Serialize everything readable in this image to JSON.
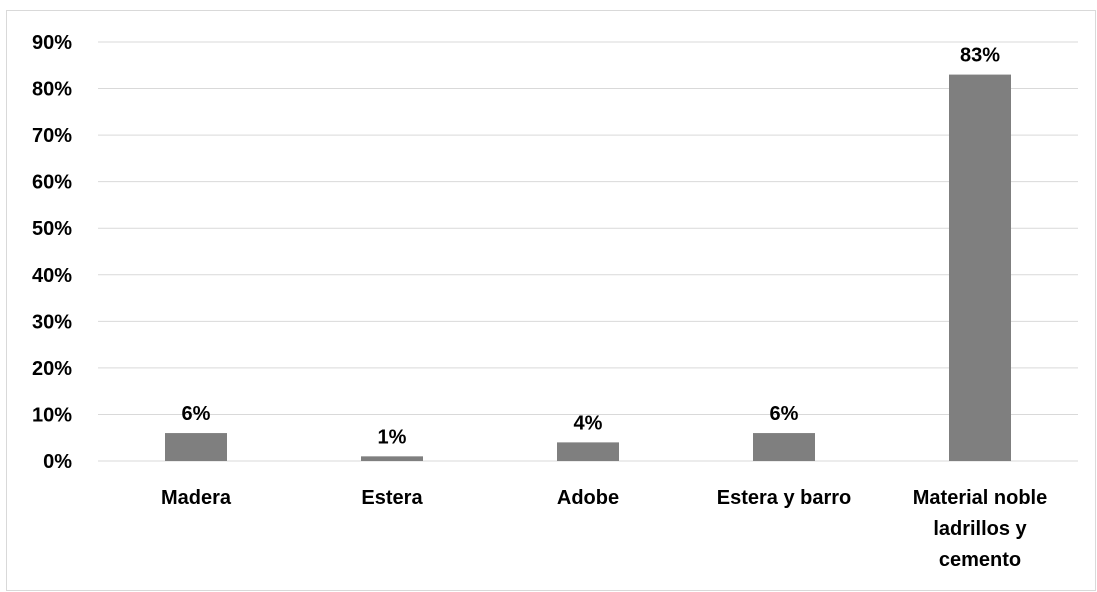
{
  "chart_data": {
    "type": "bar",
    "categories": [
      [
        "Madera"
      ],
      [
        "Estera"
      ],
      [
        "Adobe"
      ],
      [
        "Estera y barro"
      ],
      [
        "Material noble",
        "ladrillos y",
        "cemento"
      ]
    ],
    "values": [
      6,
      1,
      4,
      6,
      83
    ],
    "value_labels": [
      "6%",
      "1%",
      "4%",
      "6%",
      "83%"
    ],
    "y_ticks": [
      "0%",
      "10%",
      "20%",
      "30%",
      "40%",
      "50%",
      "60%",
      "70%",
      "80%",
      "90%"
    ],
    "ylim": [
      0,
      90
    ],
    "grid": true,
    "bar_color": "#7f7f7f",
    "grid_color": "#d9d9d9",
    "title": "",
    "xlabel": "",
    "ylabel": ""
  }
}
